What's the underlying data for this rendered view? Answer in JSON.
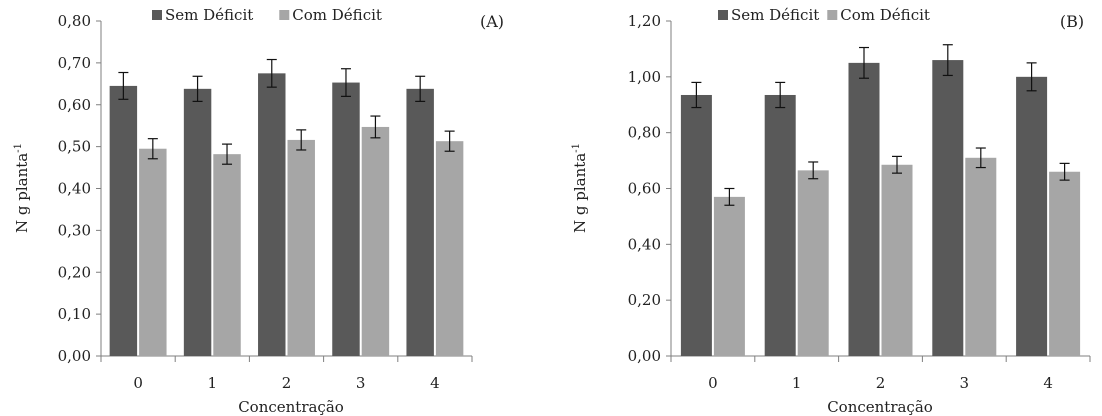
{
  "colors": {
    "sem_deficit": "#595959",
    "com_deficit": "#a6a6a6",
    "error_bar": "#111111",
    "axis": "#7f7f7f"
  },
  "chart_data": [
    {
      "type": "bar",
      "panel_label": "(A)",
      "xlabel": "Concentração",
      "ylabel_base": "N g planta",
      "ylabel_sup": "-1",
      "ylim": [
        0,
        0.8
      ],
      "yticks": [
        "0,00",
        "0,10",
        "0,20",
        "0,30",
        "0,40",
        "0,50",
        "0,60",
        "0,70",
        "0,80"
      ],
      "categories": [
        "0",
        "1",
        "2",
        "3",
        "4"
      ],
      "legend_position": "top",
      "grid": false,
      "series": [
        {
          "name": "Sem Déficit",
          "values": [
            0.645,
            0.638,
            0.675,
            0.653,
            0.638
          ],
          "errors": [
            0.032,
            0.03,
            0.033,
            0.033,
            0.03
          ]
        },
        {
          "name": "Com Déficit",
          "values": [
            0.495,
            0.482,
            0.516,
            0.547,
            0.513
          ],
          "errors": [
            0.024,
            0.024,
            0.024,
            0.026,
            0.024
          ]
        }
      ]
    },
    {
      "type": "bar",
      "panel_label": "(B)",
      "xlabel": "Concentração",
      "ylabel_base": "N g planta",
      "ylabel_sup": "-1",
      "ylim": [
        0,
        1.2
      ],
      "yticks": [
        "0,00",
        "0,20",
        "0,40",
        "0,60",
        "0,80",
        "1,00",
        "1,20"
      ],
      "categories": [
        "0",
        "1",
        "2",
        "3",
        "4"
      ],
      "legend_position": "top",
      "grid": false,
      "series": [
        {
          "name": "Sem Déficit",
          "values": [
            0.935,
            0.935,
            1.05,
            1.06,
            1.0
          ],
          "errors": [
            0.045,
            0.045,
            0.055,
            0.055,
            0.05
          ]
        },
        {
          "name": "Com Déficit",
          "values": [
            0.57,
            0.665,
            0.685,
            0.71,
            0.66
          ],
          "errors": [
            0.03,
            0.03,
            0.03,
            0.035,
            0.03
          ]
        }
      ]
    }
  ]
}
